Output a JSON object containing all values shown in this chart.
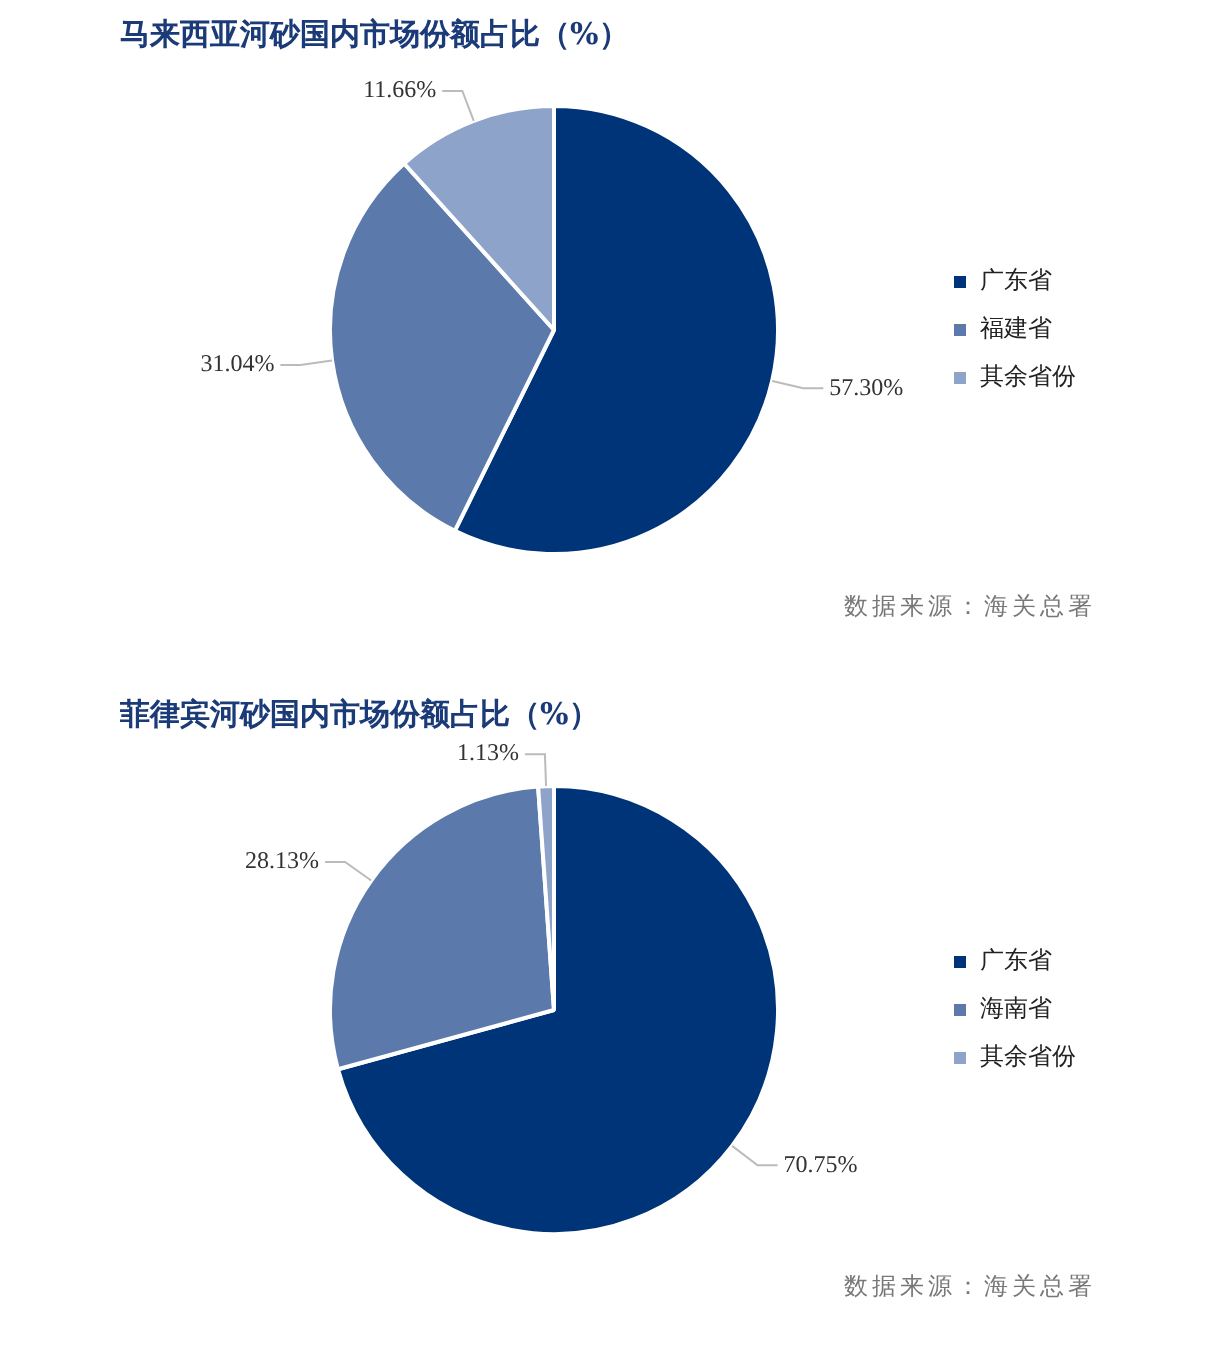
{
  "chart_data": [
    {
      "type": "pie",
      "title": "马来西亚河砂国内市场份额占比（%）",
      "categories": [
        "广东省",
        "福建省",
        "其余省份"
      ],
      "values": [
        57.3,
        31.04,
        11.66
      ],
      "colors": [
        "#003478",
        "#5b7aab",
        "#8da3c9"
      ],
      "value_labels": [
        "57.30%",
        "31.04%",
        "11.66%"
      ],
      "legend": "right",
      "annotations": [
        "数据来源：海关总署"
      ]
    },
    {
      "type": "pie",
      "title": "菲律宾河砂国内市场份额占比（%）",
      "categories": [
        "广东省",
        "海南省",
        "其余省份"
      ],
      "values": [
        70.75,
        28.13,
        1.13
      ],
      "colors": [
        "#003478",
        "#5b7aab",
        "#8da3c9"
      ],
      "value_labels": [
        "70.75%",
        "28.13%",
        "1.13%"
      ],
      "legend": "right",
      "annotations": [
        "数据来源：海关总署"
      ]
    }
  ]
}
